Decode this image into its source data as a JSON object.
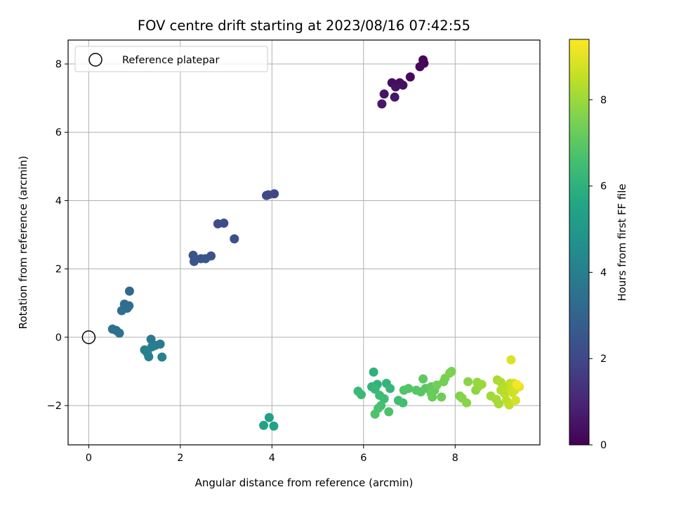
{
  "chart_data": {
    "type": "scatter",
    "title": "FOV centre drift starting at 2023/08/16 07:42:55",
    "xlabel": "Angular distance from reference (arcmin)",
    "ylabel": "Rotation from reference (arcmin)",
    "xlim": [
      -0.45,
      9.85
    ],
    "ylim": [
      -3.15,
      8.7
    ],
    "xticks": [
      0,
      2,
      4,
      6,
      8
    ],
    "yticks": [
      -2,
      0,
      2,
      4,
      6,
      8
    ],
    "grid": true,
    "legend": {
      "placement": "upper-left",
      "entries": [
        "Reference platepar"
      ]
    },
    "reference_point": {
      "x": 0,
      "y": 0,
      "label": "Reference platepar"
    },
    "colorbar": {
      "label": "Hours from first FF file",
      "colormap": "viridis",
      "range": [
        0,
        9.4
      ],
      "ticks": [
        0,
        2,
        4,
        6,
        8
      ]
    },
    "points": [
      {
        "x": 7.3,
        "y": 8.12,
        "h": 0.1
      },
      {
        "x": 7.32,
        "y": 8.02,
        "h": 0.15
      },
      {
        "x": 7.23,
        "y": 7.92,
        "h": 0.2
      },
      {
        "x": 7.02,
        "y": 7.62,
        "h": 0.25
      },
      {
        "x": 6.62,
        "y": 7.45,
        "h": 0.3
      },
      {
        "x": 6.79,
        "y": 7.45,
        "h": 0.35
      },
      {
        "x": 6.86,
        "y": 7.38,
        "h": 0.4
      },
      {
        "x": 6.7,
        "y": 7.33,
        "h": 0.45
      },
      {
        "x": 6.45,
        "y": 7.12,
        "h": 0.5
      },
      {
        "x": 6.68,
        "y": 7.03,
        "h": 0.55
      },
      {
        "x": 6.4,
        "y": 6.83,
        "h": 0.6
      },
      {
        "x": 4.05,
        "y": 4.2,
        "h": 2.0
      },
      {
        "x": 3.92,
        "y": 4.17,
        "h": 2.05
      },
      {
        "x": 3.88,
        "y": 4.15,
        "h": 2.1
      },
      {
        "x": 2.82,
        "y": 3.32,
        "h": 2.15
      },
      {
        "x": 2.95,
        "y": 3.34,
        "h": 2.2
      },
      {
        "x": 3.18,
        "y": 2.88,
        "h": 2.3
      },
      {
        "x": 2.28,
        "y": 2.4,
        "h": 2.35
      },
      {
        "x": 2.67,
        "y": 2.38,
        "h": 2.4
      },
      {
        "x": 2.45,
        "y": 2.3,
        "h": 2.45
      },
      {
        "x": 2.55,
        "y": 2.3,
        "h": 2.5
      },
      {
        "x": 2.3,
        "y": 2.22,
        "h": 2.55
      },
      {
        "x": 0.89,
        "y": 1.35,
        "h": 3.2
      },
      {
        "x": 0.78,
        "y": 0.97,
        "h": 3.3
      },
      {
        "x": 0.88,
        "y": 0.92,
        "h": 3.35
      },
      {
        "x": 0.84,
        "y": 0.85,
        "h": 3.4
      },
      {
        "x": 0.72,
        "y": 0.78,
        "h": 3.45
      },
      {
        "x": 0.52,
        "y": 0.24,
        "h": 3.5
      },
      {
        "x": 0.6,
        "y": 0.2,
        "h": 3.55
      },
      {
        "x": 0.67,
        "y": 0.12,
        "h": 3.6
      },
      {
        "x": 1.36,
        "y": -0.06,
        "h": 3.8
      },
      {
        "x": 1.56,
        "y": -0.2,
        "h": 3.85
      },
      {
        "x": 1.45,
        "y": -0.24,
        "h": 3.9
      },
      {
        "x": 1.38,
        "y": -0.28,
        "h": 3.95
      },
      {
        "x": 1.22,
        "y": -0.37,
        "h": 4.0
      },
      {
        "x": 1.28,
        "y": -0.46,
        "h": 4.05
      },
      {
        "x": 1.31,
        "y": -0.57,
        "h": 4.1
      },
      {
        "x": 1.6,
        "y": -0.58,
        "h": 4.15
      },
      {
        "x": 3.94,
        "y": -2.35,
        "h": 5.3
      },
      {
        "x": 3.82,
        "y": -2.58,
        "h": 5.35
      },
      {
        "x": 4.04,
        "y": -2.6,
        "h": 5.4
      },
      {
        "x": 6.22,
        "y": -1.02,
        "h": 6.0
      },
      {
        "x": 6.3,
        "y": -1.38,
        "h": 6.05
      },
      {
        "x": 6.18,
        "y": -1.45,
        "h": 6.1
      },
      {
        "x": 6.5,
        "y": -1.35,
        "h": 6.15
      },
      {
        "x": 6.58,
        "y": -1.5,
        "h": 6.2
      },
      {
        "x": 6.25,
        "y": -1.52,
        "h": 6.25
      },
      {
        "x": 5.88,
        "y": -1.58,
        "h": 6.3
      },
      {
        "x": 5.95,
        "y": -1.68,
        "h": 6.35
      },
      {
        "x": 6.35,
        "y": -1.7,
        "h": 6.4
      },
      {
        "x": 6.45,
        "y": -1.8,
        "h": 6.45
      },
      {
        "x": 6.76,
        "y": -1.85,
        "h": 6.5
      },
      {
        "x": 6.86,
        "y": -1.92,
        "h": 6.55
      },
      {
        "x": 6.38,
        "y": -2.0,
        "h": 6.6
      },
      {
        "x": 6.32,
        "y": -2.08,
        "h": 6.65
      },
      {
        "x": 6.55,
        "y": -2.18,
        "h": 6.7
      },
      {
        "x": 6.25,
        "y": -2.25,
        "h": 6.75
      },
      {
        "x": 6.88,
        "y": -1.55,
        "h": 6.8
      },
      {
        "x": 6.98,
        "y": -1.5,
        "h": 6.85
      },
      {
        "x": 7.15,
        "y": -1.55,
        "h": 6.9
      },
      {
        "x": 7.25,
        "y": -1.6,
        "h": 6.95
      },
      {
        "x": 7.35,
        "y": -1.5,
        "h": 7.0
      },
      {
        "x": 7.3,
        "y": -1.22,
        "h": 7.05
      },
      {
        "x": 7.48,
        "y": -1.45,
        "h": 7.1
      },
      {
        "x": 7.55,
        "y": -1.55,
        "h": 7.15
      },
      {
        "x": 7.48,
        "y": -1.65,
        "h": 7.2
      },
      {
        "x": 7.5,
        "y": -1.75,
        "h": 7.25
      },
      {
        "x": 7.7,
        "y": -1.75,
        "h": 7.3
      },
      {
        "x": 7.6,
        "y": -1.4,
        "h": 7.35
      },
      {
        "x": 7.75,
        "y": -1.3,
        "h": 7.4
      },
      {
        "x": 7.78,
        "y": -1.2,
        "h": 7.45
      },
      {
        "x": 7.92,
        "y": -1.0,
        "h": 7.5
      },
      {
        "x": 7.88,
        "y": -1.05,
        "h": 7.55
      },
      {
        "x": 8.1,
        "y": -1.72,
        "h": 7.6
      },
      {
        "x": 8.15,
        "y": -1.78,
        "h": 7.65
      },
      {
        "x": 8.25,
        "y": -1.92,
        "h": 7.7
      },
      {
        "x": 8.28,
        "y": -1.3,
        "h": 7.75
      },
      {
        "x": 8.45,
        "y": -1.55,
        "h": 7.8
      },
      {
        "x": 8.5,
        "y": -1.45,
        "h": 7.85
      },
      {
        "x": 8.48,
        "y": -1.32,
        "h": 7.9
      },
      {
        "x": 8.58,
        "y": -1.38,
        "h": 7.95
      },
      {
        "x": 8.78,
        "y": -1.72,
        "h": 8.05
      },
      {
        "x": 8.9,
        "y": -1.82,
        "h": 8.1
      },
      {
        "x": 8.95,
        "y": -1.95,
        "h": 8.15
      },
      {
        "x": 8.92,
        "y": -1.25,
        "h": 8.2
      },
      {
        "x": 9.0,
        "y": -1.32,
        "h": 8.25
      },
      {
        "x": 9.05,
        "y": -1.45,
        "h": 8.3
      },
      {
        "x": 9.0,
        "y": -1.55,
        "h": 8.35
      },
      {
        "x": 9.08,
        "y": -1.65,
        "h": 8.4
      },
      {
        "x": 9.12,
        "y": -1.85,
        "h": 8.45
      },
      {
        "x": 9.18,
        "y": -1.98,
        "h": 8.5
      },
      {
        "x": 9.2,
        "y": -1.35,
        "h": 8.55
      },
      {
        "x": 9.22,
        "y": -1.5,
        "h": 8.6
      },
      {
        "x": 9.25,
        "y": -1.62,
        "h": 8.65
      },
      {
        "x": 9.28,
        "y": -1.35,
        "h": 8.7
      },
      {
        "x": 9.3,
        "y": -1.55,
        "h": 8.75
      },
      {
        "x": 9.32,
        "y": -1.85,
        "h": 8.8
      },
      {
        "x": 9.22,
        "y": -0.66,
        "h": 8.9
      },
      {
        "x": 9.4,
        "y": -1.45,
        "h": 9.0
      },
      {
        "x": 9.35,
        "y": -1.38,
        "h": 9.3
      }
    ]
  }
}
